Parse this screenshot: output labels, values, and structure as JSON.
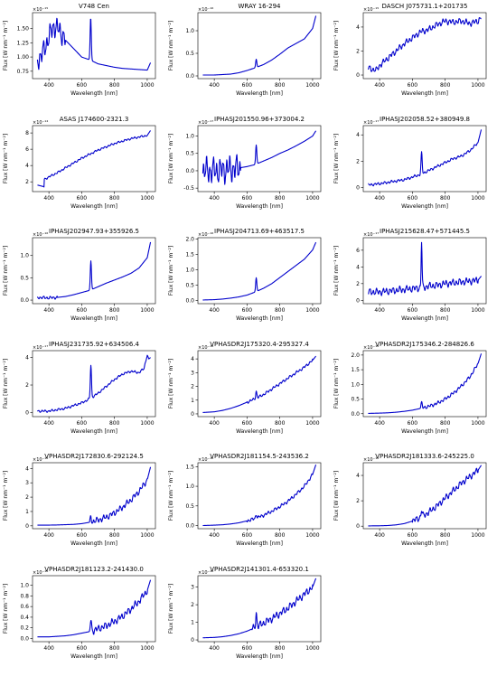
{
  "figure": {
    "line_color": "#0000cc",
    "xlabel": "Wavelength [nm]",
    "ylabel": "Flux [W nm⁻¹ m⁻²]"
  },
  "chart_data": [
    {
      "type": "line",
      "title": "V748 Cen",
      "multiplier": "×10⁻¹⁵",
      "xlim": [
        300,
        1050
      ],
      "ylim": [
        0.62,
        1.78
      ],
      "xticks": [
        400,
        600,
        800,
        1000
      ],
      "yticks": [
        0.75,
        1.0,
        1.25,
        1.5
      ],
      "ytick_labels": [
        "0.75",
        "1.00",
        "1.25",
        "1.50"
      ],
      "xlabel": "Wavelength [nm]",
      "ylabel": "Flux [W nm⁻¹ m⁻²]",
      "noise": {
        "start": 330,
        "end": 500,
        "amp": 0.22
      },
      "lines": [
        {
          "center": 655,
          "height": 0.75,
          "width": 5
        }
      ],
      "x": [
        330,
        360,
        400,
        430,
        470,
        500,
        550,
        600,
        650,
        700,
        750,
        800,
        850,
        900,
        950,
        1000,
        1020
      ],
      "y": [
        0.95,
        1.05,
        1.35,
        1.55,
        1.45,
        1.3,
        1.15,
        1.0,
        0.95,
        0.88,
        0.85,
        0.82,
        0.8,
        0.79,
        0.78,
        0.77,
        0.9
      ]
    },
    {
      "type": "line",
      "title": "WRAY 16-294",
      "multiplier": "×10⁻¹⁶",
      "xlim": [
        300,
        1050
      ],
      "ylim": [
        -0.06,
        1.4
      ],
      "xticks": [
        400,
        600,
        800,
        1000
      ],
      "yticks": [
        0.0,
        0.5,
        1.0
      ],
      "ytick_labels": [
        "0.0",
        "0.5",
        "1.0"
      ],
      "xlabel": "Wavelength [nm]",
      "ylabel": "Flux [W nm⁻¹ m⁻²]",
      "noise": null,
      "lines": [
        {
          "center": 656,
          "height": 0.18,
          "width": 5
        }
      ],
      "x": [
        330,
        400,
        450,
        500,
        550,
        600,
        650,
        700,
        750,
        800,
        850,
        900,
        950,
        1000,
        1020
      ],
      "y": [
        0.02,
        0.02,
        0.03,
        0.04,
        0.07,
        0.12,
        0.18,
        0.25,
        0.35,
        0.48,
        0.62,
        0.72,
        0.82,
        1.05,
        1.33
      ]
    },
    {
      "type": "line",
      "title": "DASCH J075731.1+201735",
      "multiplier": "×10⁻¹⁵",
      "xlim": [
        300,
        1050
      ],
      "ylim": [
        -0.3,
        5.2
      ],
      "xticks": [
        400,
        600,
        800,
        1000
      ],
      "yticks": [
        0,
        2,
        4
      ],
      "ytick_labels": [
        "0",
        "2",
        "4"
      ],
      "xlabel": "Wavelength [nm]",
      "ylabel": "Flux [W nm⁻¹ m⁻²]",
      "noise": {
        "start": 330,
        "end": 1020,
        "amp": 0.3
      },
      "lines": [],
      "x": [
        330,
        350,
        380,
        400,
        450,
        500,
        550,
        600,
        650,
        700,
        750,
        800,
        850,
        900,
        950,
        1000,
        1020
      ],
      "y": [
        0.6,
        0.5,
        0.4,
        0.8,
        1.4,
        2.0,
        2.6,
        3.1,
        3.6,
        3.8,
        4.2,
        4.5,
        4.4,
        4.5,
        4.3,
        4.5,
        4.8
      ]
    },
    {
      "type": "line",
      "title": "ASAS J174600-2321.3",
      "multiplier": "×10⁻¹⁴",
      "xlim": [
        300,
        1050
      ],
      "ylim": [
        0.8,
        8.9
      ],
      "xticks": [
        400,
        600,
        800,
        1000
      ],
      "yticks": [
        2,
        4,
        6,
        8
      ],
      "ytick_labels": [
        "2",
        "4",
        "6",
        "8"
      ],
      "xlabel": "Wavelength [nm]",
      "ylabel": "Flux [W nm⁻¹ m⁻²]",
      "noise": {
        "start": 370,
        "end": 1000,
        "amp": 0.15
      },
      "lines": [],
      "x": [
        330,
        350,
        370,
        372,
        400,
        450,
        500,
        550,
        600,
        650,
        700,
        750,
        800,
        850,
        900,
        950,
        1000,
        1020
      ],
      "y": [
        1.6,
        1.5,
        1.4,
        2.3,
        2.6,
        3.1,
        3.7,
        4.3,
        4.9,
        5.4,
        5.9,
        6.3,
        6.7,
        7.0,
        7.3,
        7.5,
        7.7,
        8.3
      ]
    },
    {
      "type": "line",
      "title": "IPHASJ201550.96+373004.2",
      "multiplier": "×10⁻¹⁷",
      "xlim": [
        300,
        1050
      ],
      "ylim": [
        -0.6,
        1.3
      ],
      "xticks": [
        400,
        600,
        800,
        1000
      ],
      "yticks": [
        -0.5,
        0.0,
        0.5,
        1.0
      ],
      "ytick_labels": [
        "-0.5",
        "0.0",
        "0.5",
        "1.0"
      ],
      "xlabel": "Wavelength [nm]",
      "ylabel": "Flux [W nm⁻¹ m⁻²]",
      "noise": {
        "start": 330,
        "end": 560,
        "amp": 0.45
      },
      "lines": [
        {
          "center": 656,
          "height": 0.55,
          "width": 5
        }
      ],
      "x": [
        330,
        400,
        450,
        500,
        550,
        600,
        650,
        700,
        750,
        800,
        850,
        900,
        950,
        1000,
        1020
      ],
      "y": [
        0.0,
        0.0,
        0.02,
        0.05,
        0.08,
        0.12,
        0.18,
        0.28,
        0.38,
        0.5,
        0.6,
        0.72,
        0.85,
        1.0,
        1.15
      ]
    },
    {
      "type": "line",
      "title": "IPHASJ202058.52+380949.8",
      "multiplier": "×10⁻¹⁷",
      "xlim": [
        300,
        1050
      ],
      "ylim": [
        -0.3,
        4.7
      ],
      "xticks": [
        400,
        600,
        800,
        1000
      ],
      "yticks": [
        0,
        2,
        4
      ],
      "ytick_labels": [
        "0",
        "2",
        "4"
      ],
      "xlabel": "Wavelength [nm]",
      "ylabel": "Flux [W nm⁻¹ m⁻²]",
      "noise": {
        "start": 330,
        "end": 1000,
        "amp": 0.12
      },
      "lines": [
        {
          "center": 656,
          "height": 1.6,
          "width": 5
        }
      ],
      "x": [
        330,
        400,
        450,
        500,
        550,
        600,
        650,
        700,
        750,
        800,
        850,
        900,
        950,
        1000,
        1020
      ],
      "y": [
        0.2,
        0.3,
        0.4,
        0.5,
        0.6,
        0.8,
        1.0,
        1.3,
        1.6,
        1.9,
        2.2,
        2.4,
        2.8,
        3.4,
        4.4
      ]
    },
    {
      "type": "line",
      "title": "IPHASJ202947.93+355926.5",
      "multiplier": "×10⁻¹⁶",
      "xlim": [
        300,
        1050
      ],
      "ylim": [
        -0.08,
        1.4
      ],
      "xticks": [
        400,
        600,
        800,
        1000
      ],
      "yticks": [
        0.0,
        0.5,
        1.0
      ],
      "ytick_labels": [
        "0.0",
        "0.5",
        "1.0"
      ],
      "xlabel": "Wavelength [nm]",
      "ylabel": "Flux [W nm⁻¹ m⁻²]",
      "noise": {
        "start": 330,
        "end": 450,
        "amp": 0.04
      },
      "lines": [
        {
          "center": 656,
          "height": 0.65,
          "width": 5
        }
      ],
      "x": [
        330,
        400,
        450,
        500,
        550,
        600,
        650,
        700,
        750,
        800,
        850,
        900,
        950,
        1000,
        1020
      ],
      "y": [
        0.06,
        0.05,
        0.06,
        0.08,
        0.12,
        0.17,
        0.22,
        0.3,
        0.38,
        0.45,
        0.52,
        0.6,
        0.72,
        0.95,
        1.3
      ]
    },
    {
      "type": "line",
      "title": "IPHASJ204713.69+463517.5",
      "multiplier": "×10⁻¹⁶",
      "xlim": [
        300,
        1050
      ],
      "ylim": [
        -0.1,
        2.05
      ],
      "xticks": [
        400,
        600,
        800,
        1000
      ],
      "yticks": [
        0.0,
        0.5,
        1.0,
        1.5,
        2.0
      ],
      "ytick_labels": [
        "0.0",
        "0.5",
        "1.0",
        "1.5",
        "2.0"
      ],
      "xlabel": "Wavelength [nm]",
      "ylabel": "Flux [W nm⁻¹ m⁻²]",
      "noise": null,
      "lines": [
        {
          "center": 656,
          "height": 0.45,
          "width": 5
        }
      ],
      "x": [
        330,
        400,
        450,
        500,
        550,
        600,
        650,
        700,
        750,
        800,
        850,
        900,
        950,
        1000,
        1020
      ],
      "y": [
        0.02,
        0.03,
        0.05,
        0.08,
        0.12,
        0.18,
        0.28,
        0.4,
        0.55,
        0.75,
        0.95,
        1.15,
        1.35,
        1.65,
        1.9
      ]
    },
    {
      "type": "line",
      "title": "IPHASJ215628.47+571445.5",
      "multiplier": "×10⁻¹⁷",
      "xlim": [
        300,
        1050
      ],
      "ylim": [
        -0.4,
        7.5
      ],
      "xticks": [
        400,
        600,
        800,
        1000
      ],
      "yticks": [
        0,
        2,
        4,
        6
      ],
      "ytick_labels": [
        "0",
        "2",
        "4",
        "6"
      ],
      "xlabel": "Wavelength [nm]",
      "ylabel": "Flux [W nm⁻¹ m⁻²]",
      "noise": {
        "start": 330,
        "end": 1000,
        "amp": 0.5
      },
      "lines": [
        {
          "center": 656,
          "height": 5.5,
          "width": 4
        }
      ],
      "x": [
        330,
        400,
        450,
        500,
        550,
        600,
        650,
        700,
        750,
        800,
        850,
        900,
        950,
        1000,
        1020
      ],
      "y": [
        1.0,
        1.0,
        1.1,
        1.2,
        1.3,
        1.4,
        1.5,
        1.7,
        1.8,
        2.0,
        2.1,
        2.2,
        2.3,
        2.4,
        2.9
      ]
    },
    {
      "type": "line",
      "title": "IPHASJ231735.92+634506.4",
      "multiplier": "×10⁻¹⁷",
      "xlim": [
        300,
        1050
      ],
      "ylim": [
        -0.3,
        4.5
      ],
      "xticks": [
        400,
        600,
        800,
        1000
      ],
      "yticks": [
        0,
        2,
        4
      ],
      "ytick_labels": [
        "0",
        "2",
        "4"
      ],
      "xlabel": "Wavelength [nm]",
      "ylabel": "Flux [W nm⁻¹ m⁻²]",
      "noise": {
        "start": 330,
        "end": 1000,
        "amp": 0.1
      },
      "lines": [
        {
          "center": 656,
          "height": 2.4,
          "width": 5
        }
      ],
      "x": [
        330,
        400,
        450,
        500,
        550,
        600,
        650,
        700,
        750,
        800,
        850,
        900,
        950,
        980,
        1000,
        1010,
        1020
      ],
      "y": [
        0.1,
        0.1,
        0.2,
        0.3,
        0.5,
        0.7,
        1.0,
        1.4,
        1.9,
        2.4,
        2.8,
        3.0,
        2.9,
        3.2,
        4.2,
        3.9,
        4.0
      ]
    },
    {
      "type": "line",
      "title": "VPHASDR2J175320.4-295327.4",
      "multiplier": "×10⁻¹⁶",
      "xlim": [
        300,
        1050
      ],
      "ylim": [
        -0.2,
        4.6
      ],
      "xticks": [
        400,
        600,
        800,
        1000
      ],
      "yticks": [
        0,
        1,
        2,
        3,
        4
      ],
      "ytick_labels": [
        "0",
        "1",
        "2",
        "3",
        "4"
      ],
      "xlabel": "Wavelength [nm]",
      "ylabel": "Flux [W nm⁻¹ m⁻²]",
      "noise": {
        "start": 600,
        "end": 1000,
        "amp": 0.12
      },
      "lines": [
        {
          "center": 656,
          "height": 0.5,
          "width": 5
        }
      ],
      "x": [
        330,
        400,
        450,
        500,
        550,
        600,
        650,
        700,
        750,
        800,
        850,
        900,
        950,
        1000,
        1020
      ],
      "y": [
        0.1,
        0.15,
        0.25,
        0.4,
        0.6,
        0.85,
        1.1,
        1.4,
        1.8,
        2.2,
        2.6,
        3.0,
        3.4,
        3.9,
        4.2
      ]
    },
    {
      "type": "line",
      "title": "VPHASDR2J175346.2-284826.6",
      "multiplier": "×10⁻¹⁶",
      "xlim": [
        300,
        1050
      ],
      "ylim": [
        -0.1,
        2.15
      ],
      "xticks": [
        400,
        600,
        800,
        1000
      ],
      "yticks": [
        0.0,
        0.5,
        1.0,
        1.5,
        2.0
      ],
      "ytick_labels": [
        "0.0",
        "0.5",
        "1.0",
        "1.5",
        "2.0"
      ],
      "xlabel": "Wavelength [nm]",
      "ylabel": "Flux [W nm⁻¹ m⁻²]",
      "noise": {
        "start": 650,
        "end": 1000,
        "amp": 0.07
      },
      "lines": [
        {
          "center": 656,
          "height": 0.18,
          "width": 5
        }
      ],
      "x": [
        330,
        400,
        450,
        500,
        550,
        600,
        650,
        700,
        750,
        800,
        850,
        900,
        950,
        1000,
        1020
      ],
      "y": [
        0.01,
        0.02,
        0.03,
        0.05,
        0.08,
        0.12,
        0.18,
        0.25,
        0.35,
        0.5,
        0.7,
        0.95,
        1.25,
        1.7,
        2.05
      ]
    },
    {
      "type": "line",
      "title": "VPHASDR2J172830.6-292124.5",
      "multiplier": "×10⁻¹⁶",
      "xlim": [
        300,
        1050
      ],
      "ylim": [
        -0.2,
        4.4
      ],
      "xticks": [
        400,
        600,
        800,
        1000
      ],
      "yticks": [
        0,
        1,
        2,
        3,
        4
      ],
      "ytick_labels": [
        "0",
        "1",
        "2",
        "3",
        "4"
      ],
      "xlabel": "Wavelength [nm]",
      "ylabel": "Flux [W nm⁻¹ m⁻²]",
      "noise": {
        "start": 650,
        "end": 1000,
        "amp": 0.25
      },
      "lines": [
        {
          "center": 656,
          "height": 0.3,
          "width": 5
        }
      ],
      "x": [
        330,
        400,
        450,
        500,
        550,
        600,
        650,
        700,
        750,
        800,
        850,
        900,
        950,
        1000,
        1020
      ],
      "y": [
        0.05,
        0.05,
        0.06,
        0.08,
        0.1,
        0.15,
        0.25,
        0.4,
        0.6,
        0.9,
        1.3,
        1.8,
        2.4,
        3.2,
        4.1
      ]
    },
    {
      "type": "line",
      "title": "VPHASDR2J181154.5-243536.2",
      "multiplier": "×10⁻¹⁶",
      "xlim": [
        300,
        1050
      ],
      "ylim": [
        -0.08,
        1.6
      ],
      "xticks": [
        400,
        600,
        800,
        1000
      ],
      "yticks": [
        0.0,
        0.5,
        1.0,
        1.5
      ],
      "ytick_labels": [
        "0.0",
        "0.5",
        "1.0",
        "1.5"
      ],
      "xlabel": "Wavelength [nm]",
      "ylabel": "Flux [W nm⁻¹ m⁻²]",
      "noise": {
        "start": 600,
        "end": 1000,
        "amp": 0.05
      },
      "lines": [
        {
          "center": 656,
          "height": 0.1,
          "width": 5
        }
      ],
      "x": [
        330,
        400,
        450,
        500,
        550,
        600,
        650,
        700,
        750,
        800,
        850,
        900,
        950,
        1000,
        1020
      ],
      "y": [
        0.0,
        0.01,
        0.02,
        0.04,
        0.07,
        0.12,
        0.18,
        0.26,
        0.36,
        0.48,
        0.62,
        0.8,
        1.0,
        1.3,
        1.55
      ]
    },
    {
      "type": "line",
      "title": "VPHASDR2J181333.6-245225.0",
      "multiplier": "×10⁻¹⁶",
      "xlim": [
        300,
        1050
      ],
      "ylim": [
        -0.2,
        5.0
      ],
      "xticks": [
        400,
        600,
        800,
        1000
      ],
      "yticks": [
        0,
        2,
        4
      ],
      "ytick_labels": [
        "0",
        "2",
        "4"
      ],
      "xlabel": "Wavelength [nm]",
      "ylabel": "Flux [W nm⁻¹ m⁻²]",
      "noise": {
        "start": 600,
        "end": 1000,
        "amp": 0.3
      },
      "lines": [
        {
          "center": 656,
          "height": 0.5,
          "width": 5
        }
      ],
      "x": [
        330,
        400,
        450,
        500,
        550,
        600,
        650,
        700,
        750,
        800,
        850,
        900,
        950,
        1000,
        1020
      ],
      "y": [
        0.02,
        0.03,
        0.05,
        0.1,
        0.2,
        0.4,
        0.7,
        1.1,
        1.6,
        2.2,
        2.8,
        3.4,
        3.9,
        4.4,
        4.8
      ]
    },
    {
      "type": "line",
      "title": "VPHASDR2J181123.2-241430.0",
      "multiplier": "×10⁻¹⁶",
      "xlim": [
        300,
        1050
      ],
      "ylim": [
        -0.06,
        1.18
      ],
      "xticks": [
        400,
        600,
        800,
        1000
      ],
      "yticks": [
        0.0,
        0.2,
        0.4,
        0.6,
        0.8,
        1.0
      ],
      "ytick_labels": [
        "0.0",
        "0.2",
        "0.4",
        "0.6",
        "0.8",
        "1.0"
      ],
      "xlabel": "Wavelength [nm]",
      "ylabel": "Flux [W nm⁻¹ m⁻²]",
      "noise": {
        "start": 650,
        "end": 1000,
        "amp": 0.08
      },
      "lines": [
        {
          "center": 656,
          "height": 0.22,
          "width": 5
        }
      ],
      "x": [
        330,
        400,
        450,
        500,
        550,
        600,
        650,
        700,
        750,
        800,
        850,
        900,
        950,
        1000,
        1020
      ],
      "y": [
        0.03,
        0.03,
        0.04,
        0.05,
        0.07,
        0.1,
        0.13,
        0.18,
        0.24,
        0.32,
        0.42,
        0.55,
        0.7,
        0.9,
        1.1
      ]
    },
    {
      "type": "line",
      "title": "VPHASDR2J141301.4-653320.1",
      "multiplier": "×10⁻¹⁶",
      "xlim": [
        300,
        1050
      ],
      "ylim": [
        -0.1,
        3.65
      ],
      "xticks": [
        400,
        600,
        800,
        1000
      ],
      "yticks": [
        0,
        1,
        2,
        3
      ],
      "ytick_labels": [
        "0",
        "1",
        "2",
        "3"
      ],
      "xlabel": "Wavelength [nm]",
      "ylabel": "Flux [W nm⁻¹ m⁻²]",
      "noise": {
        "start": 630,
        "end": 1000,
        "amp": 0.25
      },
      "lines": [
        {
          "center": 656,
          "height": 0.8,
          "width": 5
        }
      ],
      "x": [
        330,
        400,
        450,
        500,
        550,
        600,
        650,
        700,
        750,
        800,
        850,
        900,
        950,
        1000,
        1020
      ],
      "y": [
        0.12,
        0.14,
        0.18,
        0.25,
        0.35,
        0.5,
        0.7,
        0.95,
        1.2,
        1.5,
        1.8,
        2.2,
        2.6,
        3.0,
        3.5
      ]
    }
  ]
}
